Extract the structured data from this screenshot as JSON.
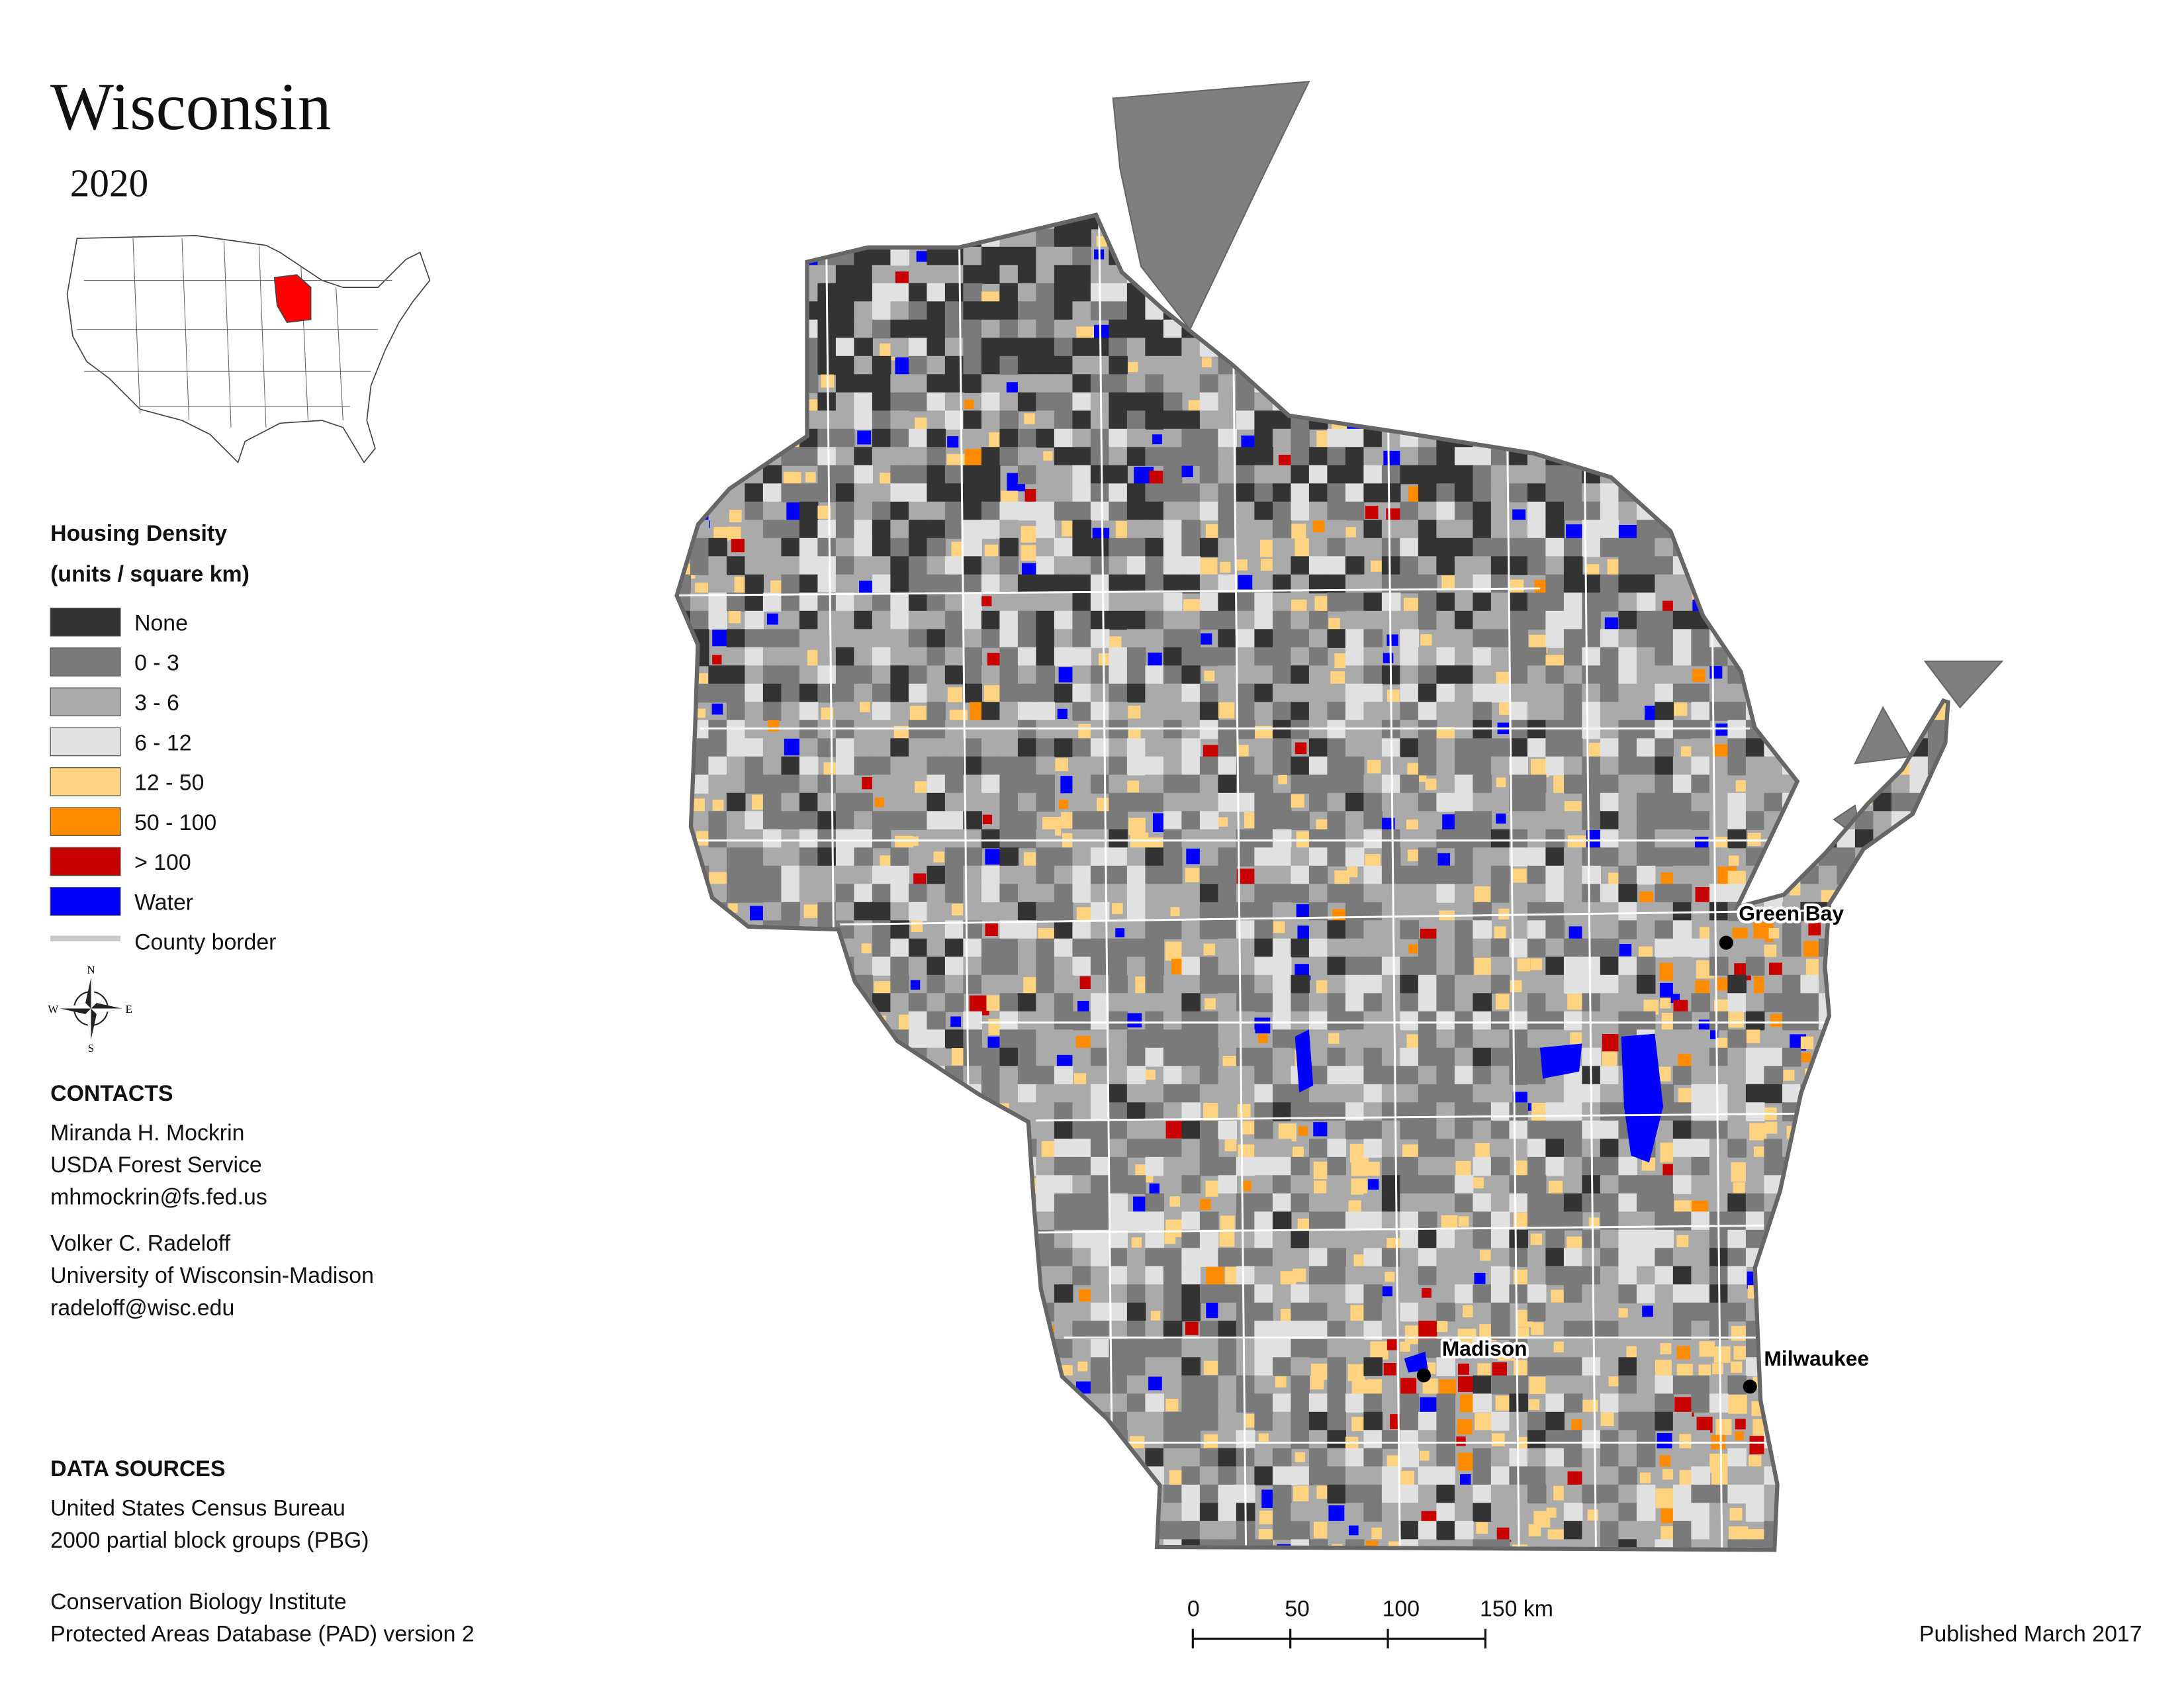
{
  "title": "Wisconsin",
  "subtitle": "2020",
  "legend": {
    "title": "Housing Density",
    "subtitle": "(units / square km)",
    "items": [
      {
        "label": "None",
        "color": "#333333"
      },
      {
        "label": "0 - 3",
        "color": "#7a7a7a"
      },
      {
        "label": "3 - 6",
        "color": "#aaaaaa"
      },
      {
        "label": "6 - 12",
        "color": "#e1e1e1"
      },
      {
        "label": "12 - 50",
        "color": "#ffd37f"
      },
      {
        "label": "50 - 100",
        "color": "#ff8c00"
      },
      {
        "label": "> 100",
        "color": "#c80000"
      },
      {
        "label": "Water",
        "color": "#0000ff"
      },
      {
        "label": "County border"
      }
    ]
  },
  "compass": [
    "N",
    "W",
    "E",
    "S"
  ],
  "cities": [
    "Green Bay",
    "Madison",
    "Milwaukee"
  ],
  "contacts": {
    "heading": "CONTACTS",
    "people": [
      [
        "Miranda H. Mockrin",
        "USDA Forest Service",
        "mhmockrin@fs.fed.us"
      ],
      [
        "Volker C. Radeloff",
        "University of Wisconsin-Madison",
        "radeloff@wisc.edu"
      ]
    ]
  },
  "data_sources": {
    "heading": "DATA SOURCES",
    "sources": [
      [
        "United States Census Bureau",
        "2000 partial block groups (PBG)"
      ],
      [
        "Conservation Biology Institute",
        "Protected Areas Database (PAD) version 2"
      ]
    ]
  },
  "scale_bar": {
    "ticks": [
      0,
      50,
      100,
      {
        "value": 150,
        "label": "150 km"
      }
    ]
  },
  "published": "Published March 2017"
}
